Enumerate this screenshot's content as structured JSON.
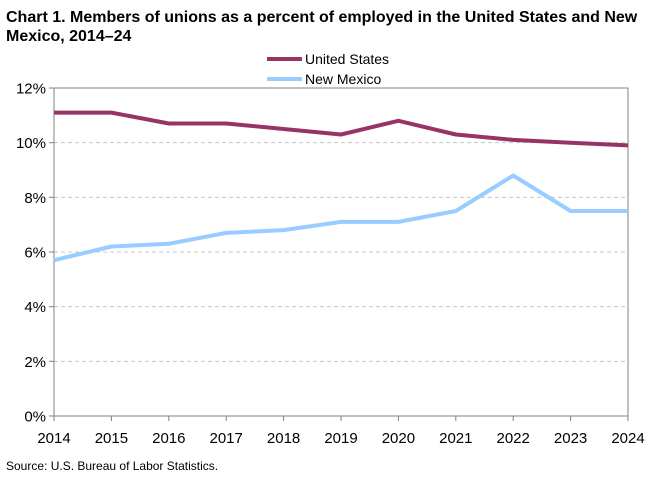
{
  "chart_data": {
    "type": "line",
    "title": "Chart 1. Members of unions as a percent of employed  in the United States and New Mexico,  2014–24",
    "x": [
      2014,
      2015,
      2016,
      2017,
      2018,
      2019,
      2020,
      2021,
      2022,
      2023,
      2024
    ],
    "x_tick_labels": [
      "2014",
      "2015",
      "2016",
      "2017",
      "2018",
      "2019",
      "2020",
      "2021",
      "2022",
      "2023",
      "2024"
    ],
    "y_tick_labels": [
      "0%",
      "2%",
      "4%",
      "6%",
      "8%",
      "10%",
      "12%"
    ],
    "y_ticks": [
      0,
      2,
      4,
      6,
      8,
      10,
      12
    ],
    "ylim": [
      0,
      12
    ],
    "xlabel": "",
    "ylabel": "",
    "grid": "horizontal-dashed",
    "legend_position": "top-center",
    "series": [
      {
        "name": "United States",
        "color": "#993366",
        "values": [
          11.1,
          11.1,
          10.7,
          10.7,
          10.5,
          10.3,
          10.8,
          10.3,
          10.1,
          10.0,
          9.9
        ]
      },
      {
        "name": "New Mexico",
        "color": "#99CCFF",
        "values": [
          5.7,
          6.2,
          6.3,
          6.7,
          6.8,
          7.1,
          7.1,
          7.5,
          8.8,
          7.5,
          7.5
        ]
      }
    ]
  },
  "source": "Source:  U.S. Bureau  of Labor Statistics."
}
